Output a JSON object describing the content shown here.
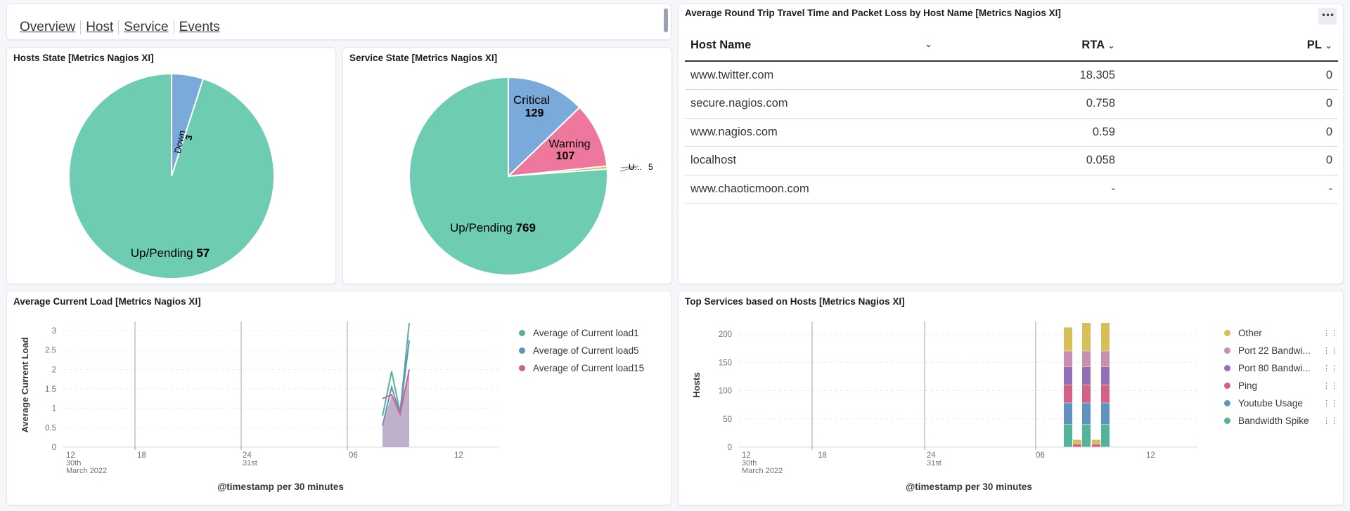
{
  "nav": {
    "links": [
      "Overview",
      "Host",
      "Service",
      "Events"
    ]
  },
  "hosts_state": {
    "title": "Hosts State [Metrics Nagios XI]",
    "chart_data": {
      "type": "pie",
      "slices": [
        {
          "label": "Up/Pending",
          "value": 57,
          "color": "#6dccb1"
        },
        {
          "label": "Down",
          "value": 3,
          "color": "#79aad9"
        }
      ]
    }
  },
  "service_state": {
    "title": "Service State [Metrics Nagios XI]",
    "chart_data": {
      "type": "pie",
      "slices": [
        {
          "label": "Up/Pending",
          "value": 769,
          "color": "#6dccb1"
        },
        {
          "label": "Critical",
          "value": 129,
          "color": "#79aad9"
        },
        {
          "label": "Warning",
          "value": 107,
          "color": "#ee789d"
        },
        {
          "label": "U...",
          "value": 5,
          "color": "#d6bf57"
        }
      ]
    }
  },
  "rtt_table": {
    "title": "Average Round Trip Travel Time and Packet Loss by Host Name [Metrics Nagios XI]",
    "options_icon": "more-options-icon",
    "columns": [
      "Host Name",
      "RTA",
      "PL"
    ],
    "rows": [
      [
        "www.twitter.com",
        "18.305",
        "0"
      ],
      [
        "secure.nagios.com",
        "0.758",
        "0"
      ],
      [
        "www.nagios.com",
        "0.59",
        "0"
      ],
      [
        "localhost",
        "0.058",
        "0"
      ],
      [
        "www.chaoticmoon.com",
        "-",
        "-"
      ]
    ]
  },
  "current_load": {
    "title": "Average Current Load [Metrics Nagios XI]",
    "chart_data": {
      "type": "line",
      "ylabel": "Average Current Load",
      "xlabel": "@timestamp per 30 minutes",
      "ylim": [
        0,
        3.2
      ],
      "yticks": [
        "0",
        "0.5",
        "1",
        "1.5",
        "2",
        "2.5",
        "3"
      ],
      "xticks": [
        {
          "label": "12",
          "sub1": "30th",
          "sub2": "March 2022"
        },
        {
          "label": "18",
          "sub1": "",
          "sub2": ""
        },
        {
          "label": "24",
          "sub1": "31st",
          "sub2": ""
        },
        {
          "label": "06",
          "sub1": "",
          "sub2": ""
        },
        {
          "label": "12",
          "sub1": "",
          "sub2": ""
        }
      ],
      "x": [
        "31st 07:30",
        "31st 08:00",
        "31st 08:30",
        "31st 09:00"
      ],
      "series": [
        {
          "name": "Average of Current load1",
          "color": "#54b399",
          "values": [
            0.8,
            1.95,
            0.9,
            3.3
          ]
        },
        {
          "name": "Average of Current load5",
          "color": "#6092c0",
          "values": [
            0.55,
            1.55,
            0.85,
            2.75
          ]
        },
        {
          "name": "Average of Current load15",
          "color": "#d36086",
          "values": [
            1.25,
            1.35,
            0.85,
            2.0
          ]
        }
      ]
    }
  },
  "top_services": {
    "title": "Top Services based on Hosts [Metrics Nagios XI]",
    "chart_data": {
      "type": "bar",
      "ylabel": "Hosts",
      "xlabel": "@timestamp per 30 minutes",
      "ylim": [
        0,
        220
      ],
      "yticks": [
        "0",
        "50",
        "100",
        "150",
        "200"
      ],
      "xticks": [
        {
          "label": "12",
          "sub1": "30th",
          "sub2": "March 2022"
        },
        {
          "label": "18",
          "sub1": "",
          "sub2": ""
        },
        {
          "label": "24",
          "sub1": "31st",
          "sub2": ""
        },
        {
          "label": "06",
          "sub1": "",
          "sub2": ""
        },
        {
          "label": "12",
          "sub1": "",
          "sub2": ""
        }
      ],
      "categories": [
        "31st 07:30",
        "31st 08:00",
        "31st 08:30",
        "31st 09:00",
        "31st 09:30"
      ],
      "series": [
        {
          "name": "Bandwidth Spike",
          "color": "#54b399",
          "values": [
            40,
            0,
            40,
            0,
            40
          ]
        },
        {
          "name": "Youtube Usage",
          "color": "#6092c0",
          "values": [
            38,
            0,
            38,
            0,
            38
          ]
        },
        {
          "name": "Ping",
          "color": "#d36086",
          "values": [
            32,
            5,
            32,
            5,
            32
          ]
        },
        {
          "name": "Port 80 Bandwi...",
          "color": "#9170b8",
          "values": [
            32,
            0,
            32,
            0,
            32
          ]
        },
        {
          "name": "Port 22 Bandwi...",
          "color": "#ca8eae",
          "values": [
            28,
            0,
            28,
            0,
            28
          ]
        },
        {
          "name": "Other",
          "color": "#d6bf57",
          "values": [
            42,
            8,
            50,
            8,
            50
          ]
        }
      ]
    }
  }
}
